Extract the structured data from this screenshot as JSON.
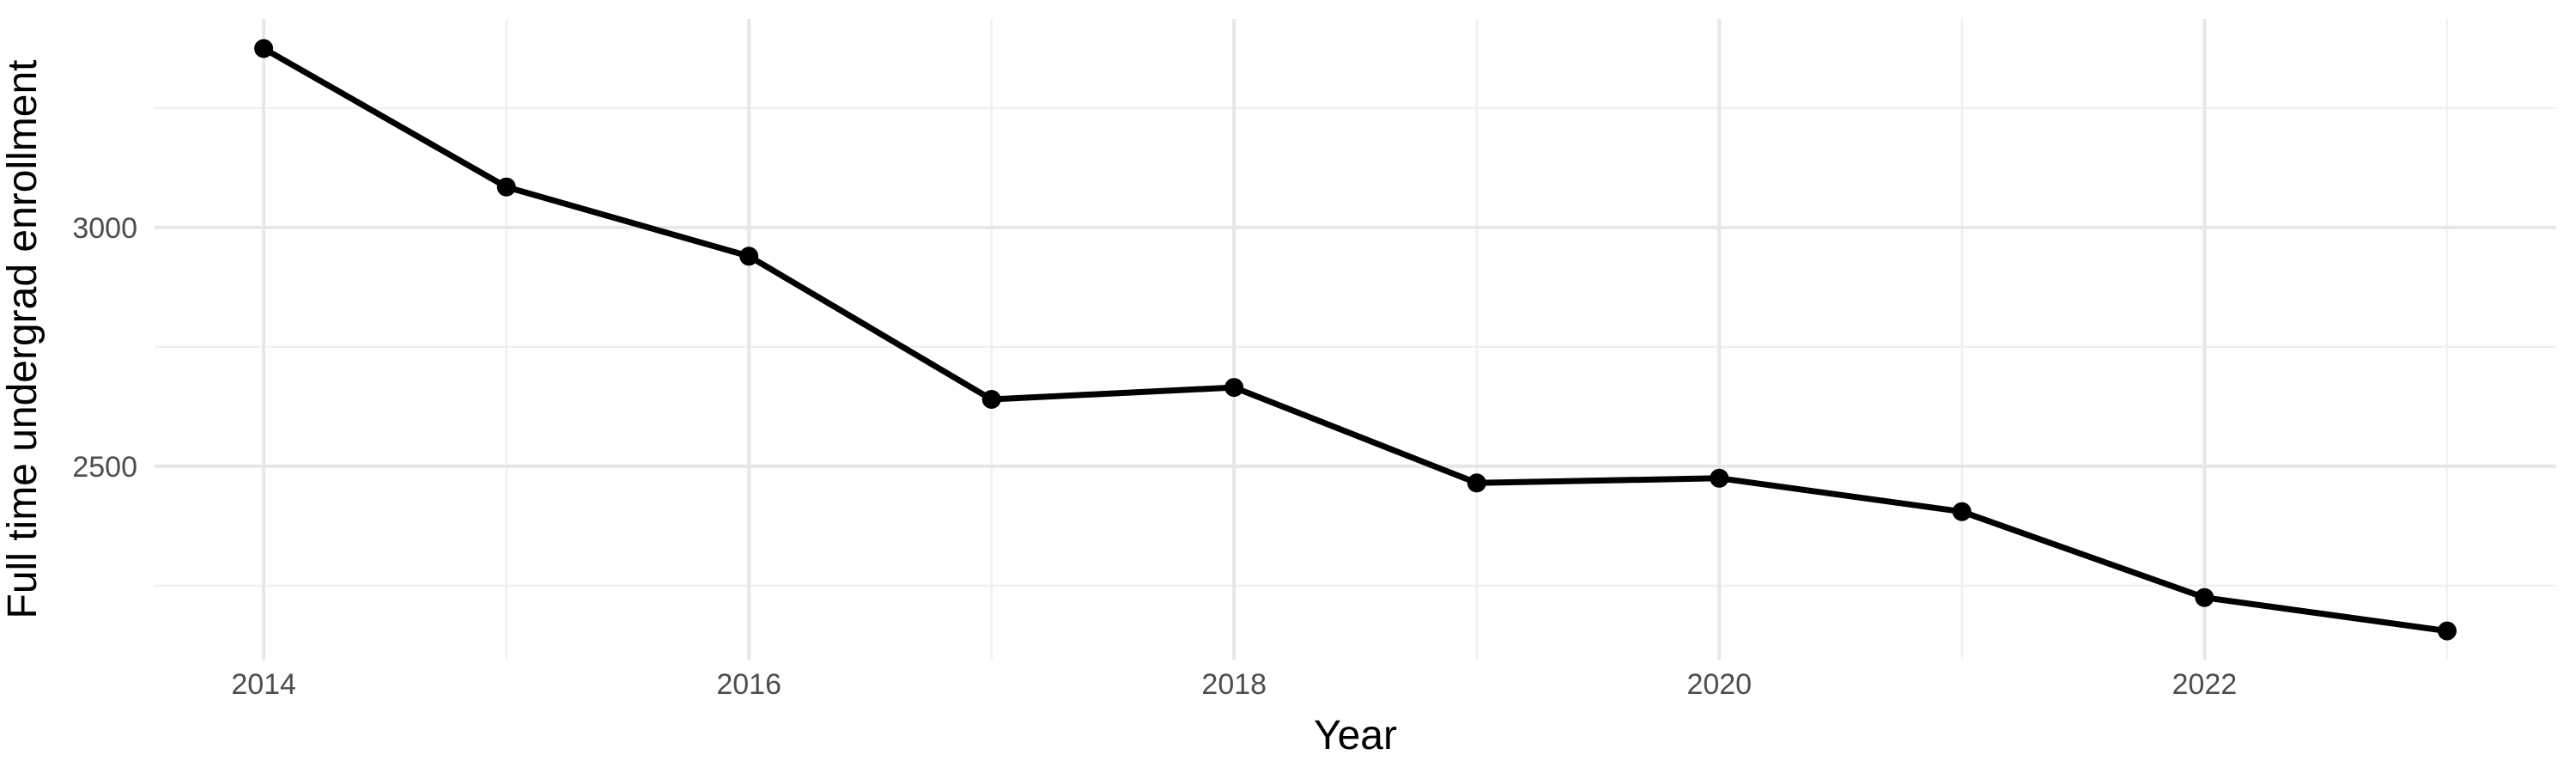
{
  "chart_data": {
    "type": "line",
    "title": "",
    "xlabel": "Year",
    "ylabel": "Full time undergrad enrollment",
    "series": [
      {
        "name": "Full time undergrad enrollment",
        "x": [
          2014,
          2015,
          2016,
          2017,
          2018,
          2019,
          2020,
          2021,
          2022,
          2023
        ],
        "values": [
          3375,
          3085,
          2940,
          2640,
          2665,
          2465,
          2475,
          2405,
          2225,
          2155
        ]
      }
    ],
    "x_tick_labels": [
      "2014",
      "2016",
      "2018",
      "2020",
      "2022"
    ],
    "x_ticks_major": [
      2014,
      2016,
      2018,
      2020,
      2022
    ],
    "x_gridlines_minor": [
      2015,
      2017,
      2019,
      2021,
      2023
    ],
    "y_tick_labels": [
      "2500",
      "3000"
    ],
    "y_ticks_major": [
      2500,
      3000
    ],
    "y_gridlines_minor": [
      2250,
      2750,
      3250
    ],
    "xlim": [
      2013.55,
      2023.45
    ],
    "ylim": [
      2095,
      3437
    ],
    "grid": "major-and-minor",
    "legend": false,
    "marker": "filled-circle",
    "colors": {
      "line": "#000000",
      "point": "#000000",
      "grid_major": "#e7e7e7",
      "grid_minor": "#f0f0f0",
      "tick_label": "#4d4d4d",
      "axis_title": "#000000",
      "background": "#ffffff"
    }
  }
}
